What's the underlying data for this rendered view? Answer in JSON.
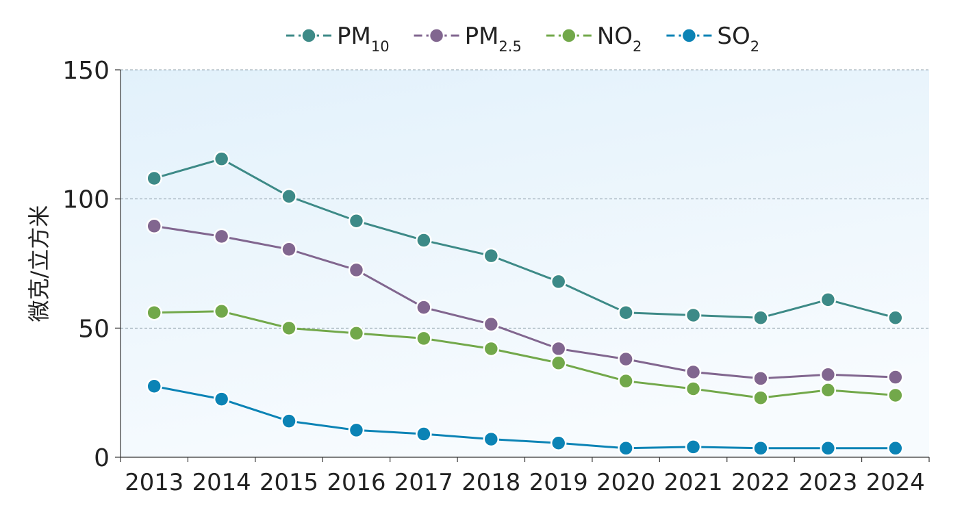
{
  "chart_data": {
    "type": "line",
    "ylabel": "微克/立方米",
    "ylim": [
      0,
      150
    ],
    "yticks": [
      0,
      50,
      100,
      150
    ],
    "categories": [
      "2013",
      "2014",
      "2015",
      "2016",
      "2017",
      "2018",
      "2019",
      "2020",
      "2021",
      "2022",
      "2023",
      "2024"
    ],
    "grid": "horizontal dashed at y ticks",
    "legend_position": "top-center",
    "series": [
      {
        "name": "PM",
        "subscript": "10",
        "color": "#3d8a87",
        "values": [
          108,
          115.5,
          101,
          91.5,
          84,
          78,
          68,
          56,
          55,
          54,
          61,
          54
        ]
      },
      {
        "name": "PM",
        "subscript": "2.5",
        "color": "#81668f",
        "values": [
          89.5,
          85.5,
          80.5,
          72.5,
          58,
          51.5,
          42,
          38,
          33,
          30.5,
          32,
          31
        ]
      },
      {
        "name": "NO",
        "subscript": "2",
        "color": "#72a84a",
        "values": [
          56,
          56.5,
          50,
          48,
          46,
          42,
          36.5,
          29.5,
          26.5,
          23,
          26,
          24
        ]
      },
      {
        "name": "SO",
        "subscript": "2",
        "color": "#0b83b5",
        "values": [
          27.5,
          22.5,
          14,
          10.5,
          9,
          7,
          5.5,
          3.5,
          4,
          3.5,
          3.5,
          3.5
        ]
      }
    ]
  }
}
